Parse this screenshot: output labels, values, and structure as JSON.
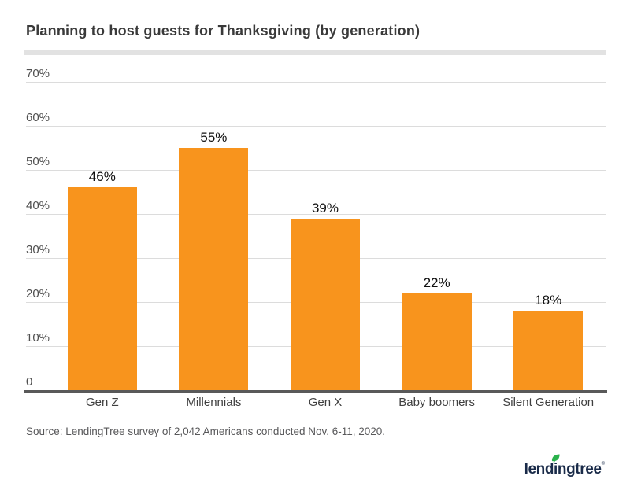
{
  "title": "Planning to host guests for Thanksgiving (by generation)",
  "source": "Source: LendingTree survey of 2,042 Americans conducted Nov. 6-11, 2020.",
  "logo": {
    "text": "lendingtree",
    "registered_mark": "®",
    "leaf_icon": "leaf-icon"
  },
  "colors": {
    "bar_orange": "#F8941D",
    "logo_navy": "#1A2B49",
    "logo_green": "#2BB24C",
    "title_gray": "#3A3A3A",
    "divider_gray": "#E2E2E2",
    "gridline_gray": "#DCDCDC",
    "axis_gray": "#595959",
    "ytick_gray": "#4F4F4F",
    "xlabel_gray": "#3F3F3F",
    "value_label_black": "#0F0F0F",
    "source_gray": "#58585A"
  },
  "chart_data": {
    "type": "bar",
    "title": "Planning to host guests for Thanksgiving (by generation)",
    "categories": [
      "Gen Z",
      "Millennials",
      "Gen X",
      "Baby boomers",
      "Silent Generation"
    ],
    "values": [
      46,
      55,
      39,
      22,
      18
    ],
    "value_labels": [
      "46%",
      "55%",
      "39%",
      "22%",
      "18%"
    ],
    "xlabel": "",
    "ylabel": "",
    "y_ticks": [
      "70%",
      "60%",
      "50%",
      "40%",
      "30%",
      "20%",
      "10%",
      "0"
    ],
    "ylim": [
      0,
      70
    ],
    "grid": true,
    "legend": "none"
  }
}
